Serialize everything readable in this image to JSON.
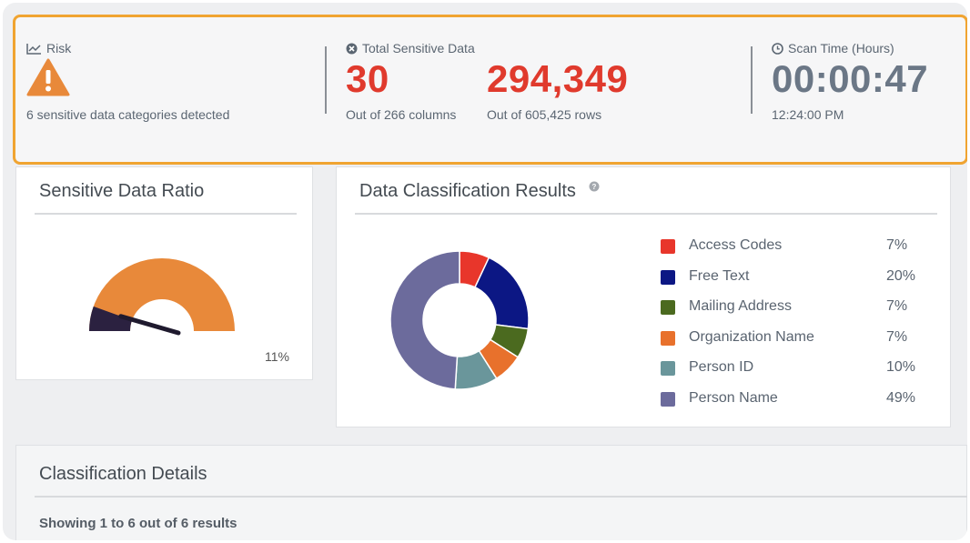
{
  "summary": {
    "risk": {
      "label": "Risk",
      "detail": "6 sensitive data categories detected"
    },
    "sensitive": {
      "label": "Total Sensitive Data",
      "columns_value": "30",
      "columns_sub": "Out of 266 columns",
      "rows_value": "294,349",
      "rows_sub": "Out of 605,425 rows"
    },
    "scan": {
      "label": "Scan Time (Hours)",
      "value": "00:00:47",
      "time": "12:24:00 PM"
    }
  },
  "ratio_card": {
    "title": "Sensitive Data Ratio",
    "percent_label": "11%",
    "ratio": 0.11
  },
  "results_card": {
    "title": "Data Classification Results",
    "help_icon": "question-circle-icon"
  },
  "classification_card": {
    "title": "Classification Details",
    "showing": "Showing 1 to 6 out of 6 results"
  },
  "chart_data": {
    "type": "pie",
    "donut": true,
    "categories": [
      "Access Codes",
      "Free Text",
      "Mailing Address",
      "Organization Name",
      "Person ID",
      "Person Name"
    ],
    "values": [
      7,
      20,
      7,
      7,
      10,
      49
    ],
    "labels": [
      "7%",
      "20%",
      "7%",
      "7%",
      "10%",
      "49%"
    ],
    "colors": [
      "#e8362b",
      "#0c1784",
      "#4b6a1f",
      "#e8712c",
      "#6a969b",
      "#6c6b9c"
    ],
    "legend": "right"
  },
  "colors": {
    "highlight": "#f0a431",
    "accent_red": "#e03a2d",
    "gauge_fill": "#e8893a",
    "gauge_low": "#2b2140"
  }
}
